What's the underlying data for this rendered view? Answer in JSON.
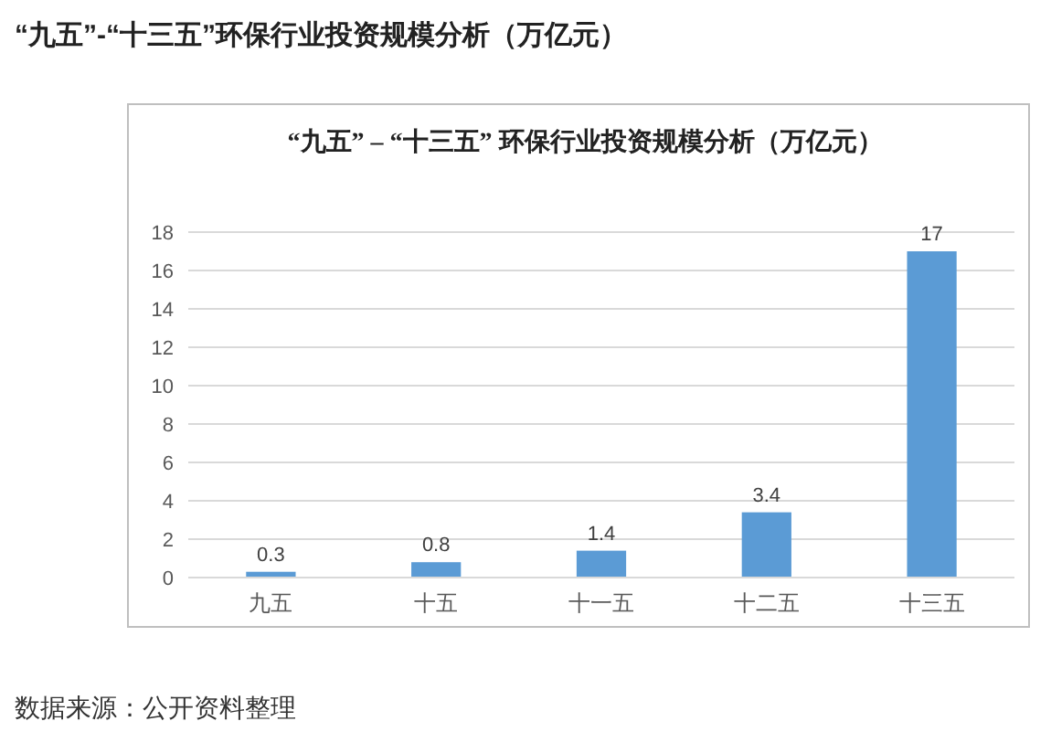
{
  "chart_data": {
    "type": "bar",
    "title": "“九五”-“十三五”环保行业投资规模分析（万亿元）",
    "subtitle": "“九五” – “十三五” 环保行业投资规模分析（万亿元）",
    "categories": [
      "九五",
      "十五",
      "十一五",
      "十二五",
      "十三五"
    ],
    "values": [
      0.3,
      0.8,
      1.4,
      3.4,
      17
    ],
    "color": "#5b9bd5",
    "ylim": [
      0,
      18
    ],
    "yticks": [
      0,
      2,
      4,
      6,
      8,
      10,
      12,
      14,
      16,
      18
    ],
    "grid": "y",
    "data_labels": true,
    "annotations": [
      "数据来源：公开资料整理"
    ]
  }
}
